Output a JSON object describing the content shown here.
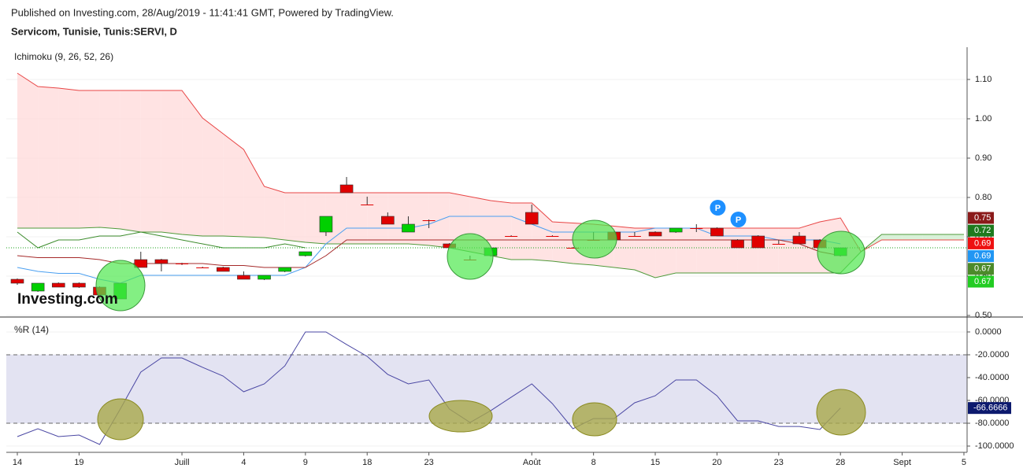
{
  "header": {
    "published": "Published on Investing.com, 28/Aug/2019 - 11:41:41 GMT, Powered by TradingView.",
    "symbol": "Servicom, Tunisie, Tunis:SERVI, D",
    "logo": "Investing.com"
  },
  "chart_data": [
    {
      "type": "candlestick",
      "title": "Ichimoku (9, 26, 52, 26)",
      "categories": [
        "14",
        null,
        null,
        "19",
        null,
        null,
        null,
        null,
        "Juill",
        null,
        null,
        "4",
        null,
        null,
        "9",
        null,
        null,
        "18",
        null,
        null,
        "23",
        null,
        null,
        null,
        null,
        "Août",
        null,
        null,
        "8",
        null,
        null,
        "15",
        null,
        null,
        "20",
        null,
        null,
        "23",
        null,
        null,
        "28",
        null,
        null,
        "Sept",
        null,
        null,
        "5"
      ],
      "open": [
        0.592,
        0.562,
        0.582,
        0.582,
        0.572,
        0.542,
        0.642,
        0.642,
        0.632,
        0.622,
        0.622,
        0.602,
        0.592,
        0.612,
        0.652,
        0.712,
        0.832,
        0.782,
        0.752,
        0.712,
        0.742,
        0.682,
        0.642,
        0.652,
        0.702,
        0.762,
        0.702,
        0.672,
        0.692,
        0.712,
        0.702,
        0.712,
        0.712,
        0.722,
        0.722,
        0.692,
        0.702,
        0.682,
        0.702,
        0.692,
        0.652,
        null,
        null,
        null,
        null,
        null,
        null
      ],
      "high": [
        0.594,
        0.582,
        0.584,
        0.584,
        0.574,
        0.582,
        0.662,
        0.644,
        0.634,
        0.624,
        0.624,
        0.612,
        0.602,
        0.622,
        0.662,
        0.752,
        0.852,
        0.802,
        0.762,
        0.752,
        0.744,
        0.684,
        0.652,
        0.672,
        0.704,
        0.782,
        0.704,
        0.674,
        0.712,
        0.714,
        0.712,
        0.714,
        0.722,
        0.732,
        0.724,
        0.694,
        0.704,
        0.692,
        0.712,
        0.694,
        0.672,
        null,
        null,
        null,
        null,
        null,
        null
      ],
      "low": [
        0.578,
        0.56,
        0.572,
        0.57,
        0.552,
        0.542,
        0.622,
        0.612,
        0.628,
        0.62,
        0.612,
        0.592,
        0.59,
        0.61,
        0.65,
        0.702,
        0.812,
        0.78,
        0.732,
        0.712,
        0.722,
        0.672,
        0.64,
        0.65,
        0.7,
        0.732,
        0.7,
        0.67,
        0.69,
        0.692,
        0.7,
        0.702,
        0.71,
        0.712,
        0.702,
        0.672,
        0.672,
        0.68,
        0.682,
        0.672,
        0.65,
        null,
        null,
        null,
        null,
        null,
        null
      ],
      "close": [
        0.582,
        0.582,
        0.572,
        0.572,
        0.552,
        0.582,
        0.622,
        0.632,
        0.632,
        0.622,
        0.612,
        0.592,
        0.602,
        0.622,
        0.662,
        0.752,
        0.812,
        0.782,
        0.732,
        0.732,
        0.742,
        0.672,
        0.642,
        0.672,
        0.702,
        0.732,
        0.702,
        0.672,
        0.692,
        0.692,
        0.702,
        0.702,
        0.722,
        0.722,
        0.702,
        0.672,
        0.672,
        0.682,
        0.682,
        0.672,
        0.672,
        null,
        null,
        null,
        null,
        null,
        null
      ],
      "up_color": "#00d000",
      "down_color": "#e00000",
      "series": [
        {
          "name": "Span B",
          "color": "#e84545",
          "values": [
            1.116,
            1.082,
            1.078,
            1.072,
            1.072,
            1.072,
            1.072,
            1.072,
            1.072,
            1.002,
            0.962,
            0.922,
            0.828,
            0.812,
            0.812,
            0.812,
            0.812,
            0.812,
            0.812,
            0.812,
            0.812,
            0.812,
            0.802,
            0.792,
            0.786,
            0.786,
            0.738,
            0.735,
            0.732,
            0.727,
            0.722,
            0.722,
            0.722,
            0.722,
            0.722,
            0.722,
            0.722,
            0.722,
            0.722,
            0.738,
            0.748,
            0.662,
            0.692,
            0.692,
            0.692,
            0.692,
            0.692
          ]
        },
        {
          "name": "Span A",
          "color": "#4f9a3a",
          "values": [
            0.722,
            0.722,
            0.722,
            0.722,
            0.724,
            0.72,
            0.712,
            0.712,
            0.706,
            0.702,
            0.702,
            0.7,
            0.698,
            0.692,
            0.686,
            0.682,
            0.682,
            0.682,
            0.682,
            0.682,
            0.678,
            0.672,
            0.662,
            0.652,
            0.642,
            0.642,
            0.638,
            0.632,
            0.628,
            0.622,
            0.616,
            0.596,
            0.608,
            0.608,
            0.608,
            0.608,
            0.608,
            0.608,
            0.608,
            0.608,
            0.608,
            0.662,
            0.706,
            0.706,
            0.706,
            0.706,
            0.706
          ]
        },
        {
          "name": "Tenkan",
          "color": "#4a9ff0",
          "values": [
            0.622,
            0.612,
            0.607,
            0.607,
            0.592,
            0.582,
            0.602,
            0.602,
            0.602,
            0.602,
            0.602,
            0.602,
            0.602,
            0.602,
            0.622,
            0.682,
            0.722,
            0.722,
            0.722,
            0.722,
            0.732,
            0.752,
            0.752,
            0.752,
            0.752,
            0.732,
            0.712,
            0.712,
            0.712,
            0.712,
            0.712,
            0.722,
            0.722,
            0.722,
            0.702,
            0.702,
            0.702,
            0.692,
            0.692,
            0.692,
            0.682,
            null,
            null,
            null,
            null,
            null,
            null
          ]
        },
        {
          "name": "Kijun",
          "color": "#a52a2a",
          "values": [
            0.652,
            0.647,
            0.647,
            0.647,
            0.642,
            0.632,
            0.632,
            0.632,
            0.632,
            0.632,
            0.627,
            0.627,
            0.622,
            0.622,
            0.622,
            0.652,
            0.692,
            0.692,
            0.692,
            0.692,
            0.692,
            0.692,
            0.692,
            0.692,
            0.692,
            0.692,
            0.692,
            0.692,
            0.692,
            0.692,
            0.692,
            0.692,
            0.692,
            0.692,
            0.692,
            0.692,
            0.692,
            0.692,
            0.682,
            0.662,
            0.652,
            null,
            null,
            null,
            null,
            null,
            null
          ]
        },
        {
          "name": "Chikou",
          "color": "#3c8c2c",
          "values": [
            0.712,
            0.672,
            0.692,
            0.692,
            0.702,
            0.702,
            0.712,
            0.702,
            0.692,
            0.682,
            0.672,
            0.672,
            0.672,
            0.682,
            0.672,
            null,
            null,
            null,
            null,
            null,
            null,
            null,
            null,
            null,
            null,
            null,
            null,
            null,
            null,
            null,
            null,
            null,
            null,
            null,
            null,
            null,
            null,
            null,
            null,
            null,
            null,
            null,
            null,
            null,
            null,
            null,
            null
          ]
        }
      ],
      "cloud_colors": [
        "#ffd9d9",
        "#cdeecd"
      ],
      "markers": [
        "P",
        "P"
      ],
      "marker_color": "#1e90ff",
      "price_labels": [
        {
          "value": 0.75,
          "color": "#8b1a1a"
        },
        {
          "value": 0.72,
          "color": "#1e7a1e"
        },
        {
          "value": 0.69,
          "color": "#ee1111"
        },
        {
          "value": 0.69,
          "color": "#2196f3"
        },
        {
          "value": 0.67,
          "color": "#4c8a2a"
        },
        {
          "value": 0.67,
          "color": "#22cc22"
        }
      ],
      "ylim": [
        0.496,
        1.182
      ],
      "yticks": [
        {
          "value": 0.5,
          "label": "0.50"
        },
        {
          "value": 0.6,
          "label": "0.60"
        },
        {
          "value": 0.7,
          "label": "0.70"
        },
        {
          "value": 0.8,
          "label": "0.80"
        },
        {
          "value": 0.9,
          "label": "0.90"
        },
        {
          "value": 1.0,
          "label": "1.00"
        },
        {
          "value": 1.1,
          "label": "1.10"
        }
      ],
      "grid": true
    },
    {
      "type": "line",
      "title": "%R (14)",
      "color": "#4a47a3",
      "values": [
        -91.7,
        -84.8,
        -91.7,
        -90.3,
        -98.6,
        -67.6,
        -35.2,
        -22.8,
        -22.8,
        -31,
        -38.6,
        -52.4,
        -45.5,
        -29.7,
        0,
        0,
        -11,
        -21.4,
        -37.2,
        -45.5,
        -42.1,
        -67.6,
        -79.3,
        -69,
        -57.2,
        -45.5,
        -62.8,
        -84.8,
        -75.9,
        -75.9,
        -62.1,
        -55.9,
        -42.1,
        -42.1,
        -55.9,
        -77.9,
        -77.9,
        -82.8,
        -82.8,
        -85.5,
        -66.6666,
        null,
        null,
        null,
        null,
        null,
        null
      ],
      "bands": [
        -20,
        -80
      ],
      "band_color": "#e3e3f2",
      "label_color": "#0d1a6e",
      "ylim": [
        -105.5,
        11.7
      ],
      "yticks": [
        {
          "value": 0,
          "label": "0.0000"
        },
        {
          "value": -20,
          "label": "-20.0000"
        },
        {
          "value": -40,
          "label": "-40.0000"
        },
        {
          "value": -60,
          "label": "-60.0000"
        },
        {
          "value": -80,
          "label": "-80.0000"
        },
        {
          "value": -100,
          "label": "-100.0000"
        }
      ],
      "grid": true
    }
  ]
}
